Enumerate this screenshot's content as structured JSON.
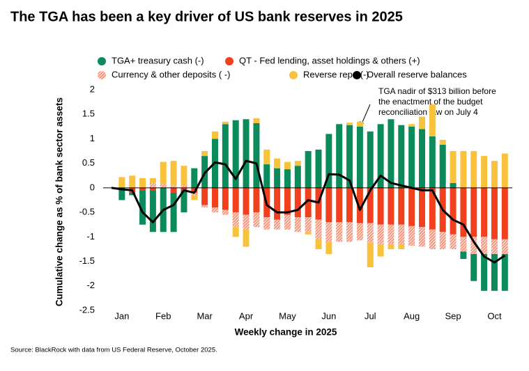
{
  "chart_data": {
    "type": "stacked-bar-line",
    "title": "The TGA has been a key driver of US bank reserves in 2025",
    "x_label": "Weekly change in 2025",
    "y_label": "Cumulative change as % of bank sector assets",
    "source": "Source: BlackRock with data from US Federal Reserve, October 2025.",
    "annotation": [
      "TGA nadir of $313 billion before",
      "the enactment of the budget",
      "reconciliation law on July 4"
    ],
    "categories": [
      null,
      "Jan",
      null,
      null,
      null,
      "Feb",
      null,
      null,
      null,
      "Mar",
      null,
      null,
      null,
      "Apr",
      null,
      null,
      null,
      "May",
      null,
      null,
      null,
      "Jun",
      null,
      null,
      null,
      "Jul",
      null,
      null,
      null,
      "Aug",
      null,
      null,
      null,
      "Sep",
      null,
      null,
      null,
      "Oct",
      null
    ],
    "ylim": [
      -2.5,
      2
    ],
    "yticks": [
      2,
      1.5,
      1,
      0.5,
      0,
      -0.5,
      -1,
      -1.5,
      -2,
      -2.5
    ],
    "series": [
      {
        "name": "TGA+ treasury cash (-)",
        "color": "#0b8a5c",
        "kind": "bar",
        "values": [
          null,
          -0.25,
          -0.05,
          -0.7,
          -0.85,
          -0.9,
          -0.8,
          -0.45,
          0.4,
          0.65,
          1.0,
          1.3,
          1.38,
          1.4,
          1.32,
          0.48,
          0.4,
          0.38,
          0.45,
          0.75,
          0.78,
          1.1,
          1.3,
          1.28,
          1.25,
          1.15,
          1.3,
          1.4,
          1.28,
          1.25,
          1.2,
          1.05,
          0.88,
          0.1,
          -0.15,
          -0.55,
          -0.75,
          -0.75,
          -0.75
        ]
      },
      {
        "name": "QT - Fed lending, asset holdings & others (+)",
        "color": "#f0401e",
        "kind": "bar",
        "values": [
          null,
          0,
          -0.1,
          -0.05,
          -0.05,
          0,
          -0.1,
          -0.05,
          -0.1,
          -0.35,
          -0.4,
          -0.45,
          -0.5,
          -0.55,
          -0.5,
          -0.6,
          -0.65,
          -0.55,
          -0.6,
          -0.6,
          -0.65,
          -0.7,
          -0.7,
          -0.7,
          -0.72,
          -0.72,
          -0.75,
          -0.75,
          -0.75,
          -0.78,
          -0.8,
          -0.85,
          -0.9,
          -0.95,
          -1.0,
          -1.0,
          -1.0,
          -1.05,
          -1.05
        ]
      },
      {
        "name": "Currency & other deposits (  -)",
        "color": "#f3876c",
        "kind": "hatched-bar",
        "values": [
          null,
          0,
          0,
          0,
          0.1,
          0.08,
          0.05,
          0.05,
          -0.05,
          -0.05,
          -0.1,
          -0.1,
          -0.3,
          -0.3,
          -0.3,
          -0.25,
          -0.2,
          -0.3,
          -0.3,
          -0.3,
          -0.4,
          -0.4,
          -0.4,
          -0.4,
          -0.35,
          -0.4,
          -0.4,
          -0.4,
          -0.4,
          -0.4,
          -0.4,
          -0.4,
          -0.35,
          -0.3,
          -0.3,
          -0.35,
          -0.35,
          -0.3,
          -0.3
        ]
      },
      {
        "name": "Reverse repo (-)",
        "color": "#f9c23c",
        "kind": "bar",
        "values": [
          null,
          0.22,
          0.25,
          0.2,
          0.1,
          0.45,
          0.5,
          0.4,
          -0.1,
          0.1,
          0.15,
          0.05,
          -0.2,
          -0.35,
          0.1,
          0.3,
          0.2,
          0.15,
          0.1,
          -0.05,
          -0.2,
          -0.25,
          0,
          0.05,
          0.1,
          -0.5,
          -0.25,
          -0.1,
          -0.1,
          0.05,
          0.25,
          0.65,
          0.1,
          0.65,
          0.75,
          0.75,
          0.65,
          0.55,
          0.7
        ]
      },
      {
        "name": "Overall reserve balances",
        "color": "#000000",
        "kind": "line",
        "values": [
          0,
          -0.03,
          -0.05,
          -0.5,
          -0.7,
          -0.45,
          -0.35,
          -0.05,
          -0.1,
          0.3,
          0.52,
          0.48,
          0.18,
          0.55,
          0.5,
          -0.35,
          -0.5,
          -0.5,
          -0.45,
          -0.25,
          -0.3,
          0.28,
          0.27,
          0.15,
          -0.45,
          -0.05,
          0.25,
          0.1,
          0.05,
          0,
          -0.05,
          -0.05,
          -0.45,
          -0.65,
          -0.75,
          -1.1,
          -1.4,
          -1.52,
          -1.38
        ]
      }
    ]
  }
}
